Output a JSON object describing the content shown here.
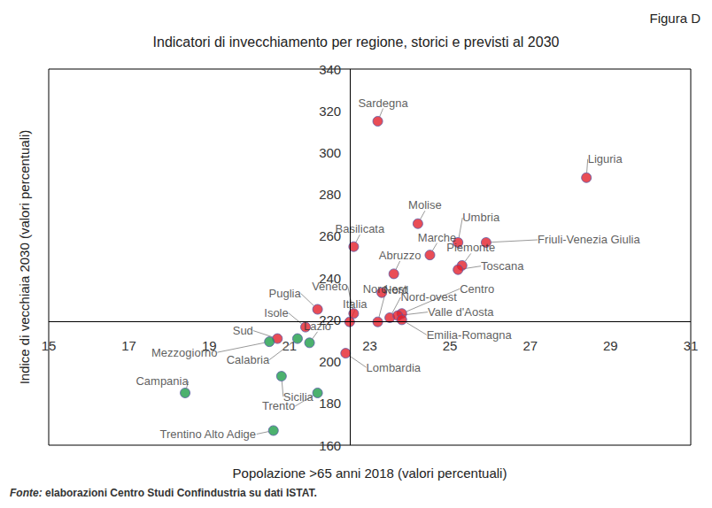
{
  "chart_data": {
    "type": "scatter",
    "figure_label": "Figura D",
    "title": "Indicatori di invecchiamento per regione, storici e previsti al 2030",
    "x_label": "Popolazione >65 anni 2018 (valori percentuali)",
    "y_label": "Indice di vecchiaia 2030 (valori percentuali)",
    "source": "Fonte: elaborazioni Centro Studi Confindustria su dati ISTAT.",
    "labels": [
      "Sardegna",
      "Liguria",
      "Molise",
      "Umbria",
      "Friuli-Venezia Giulia",
      "Marche",
      "Piemonte",
      "Toscana",
      "Abruzzo",
      "Basilicata",
      "Nord",
      "Nord-est",
      "Nord-ovest",
      "Centro",
      "Valle d'Aosta",
      "Emilia-Romagna",
      "Veneto",
      "Puglia",
      "Italia",
      "Isole",
      "Lazio",
      "Sud",
      "Mezzogiorno",
      "Calabria",
      "Sicilia",
      "Trento",
      "Campania",
      "Trentino Alto Adige",
      "Lombardia"
    ],
    "x": [
      23.2,
      28.4,
      24.2,
      25.2,
      25.9,
      24.5,
      25.3,
      25.2,
      23.6,
      22.6,
      23.3,
      23.2,
      23.5,
      23.8,
      23.7,
      23.8,
      22.6,
      21.7,
      22.5,
      21.4,
      21.5,
      20.7,
      20.5,
      21.2,
      20.8,
      21.7,
      18.4,
      20.6,
      22.4
    ],
    "y": [
      315,
      288,
      266,
      257,
      257,
      251,
      246,
      244,
      242,
      255,
      233,
      219,
      221,
      223,
      222,
      220,
      223,
      225,
      219,
      216.5,
      209,
      211,
      209.5,
      211,
      193,
      185,
      185,
      167,
      204
    ],
    "colors": [
      "#e3202c",
      "#e3202c",
      "#e3202c",
      "#e3202c",
      "#e3202c",
      "#e3202c",
      "#e3202c",
      "#e3202c",
      "#e3202c",
      "#e3202c",
      "#e3202c",
      "#e3202c",
      "#e3202c",
      "#e3202c",
      "#e3202c",
      "#e3202c",
      "#e3202c",
      "#e3202c",
      "#e3202c",
      "#e3202c",
      "#1f9e4a",
      "#e3202c",
      "#1f9e4a",
      "#1f9e4a",
      "#1f9e4a",
      "#1f9e4a",
      "#1f9e4a",
      "#1f9e4a",
      "#e3202c"
    ],
    "reference_lines": {
      "x": 22.5,
      "y": 219
    },
    "xlim": [
      15,
      31
    ],
    "xticks": [
      15,
      17,
      19,
      21,
      23,
      25,
      27,
      29,
      31
    ],
    "ylim": [
      160,
      340
    ],
    "yticks": [
      160,
      180,
      200,
      220,
      240,
      260,
      280,
      300,
      320,
      340
    ],
    "grid": false
  }
}
